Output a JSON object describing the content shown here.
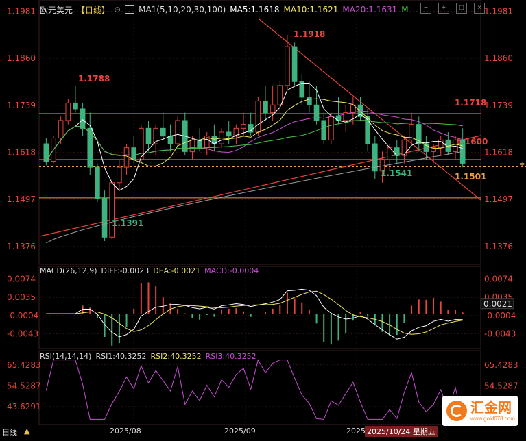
{
  "header": {
    "symbol": "欧元美元",
    "period": "【日线】",
    "ma_label": "MA1(5,10,20,30,100)",
    "ma5": "MA5:1.1618",
    "ma10": "MA10:1.1621",
    "ma20": "MA20:1.1631",
    "m_flag": "M"
  },
  "macd_header": {
    "title": "MACD(26,12,9)",
    "diff": "DIFF:-0.0023",
    "dea": "DEA:-0.0021",
    "macd": "MACD:-0.0004"
  },
  "rsi_header": {
    "title": "RSI(14,14,14)",
    "rsi1": "RSI1:40.3252",
    "rsi2": "RSI2:40.3252",
    "rsi3": "RSI3:40.3252"
  },
  "price_axis": [
    "1.1981",
    "1.1860",
    "1.1739",
    "1.1618",
    "1.1497",
    "1.1376"
  ],
  "macd_axis": [
    "0.0074",
    "0.0035",
    "-0.0004",
    "-0.0043"
  ],
  "macd_current": "0.0021",
  "rsi_axis": [
    "65.4283",
    "54.5287",
    "43.6291"
  ],
  "annotations": {
    "high": "1.1918",
    "peak_left": "1.1788",
    "low": "1.1391",
    "level_upper": "1.1718",
    "level_mid": "1.1600",
    "level_low": "1.1501",
    "swing_low": "1.1541"
  },
  "dates": {
    "aug": "2025/08",
    "sep": "2025/09",
    "oct_partial": "2025",
    "current": "2025/10/24 星期五"
  },
  "footer": {
    "left_label": "日线"
  },
  "logo": {
    "name": "汇金网",
    "url": "www.gold678.com"
  },
  "colors": {
    "up": "#e8453c",
    "down": "#3fb37f",
    "ma5": "#ffffff",
    "ma10": "#f2e85c",
    "ma20": "#c94fd6",
    "ma30": "#49c24a",
    "ma100": "#9a9a9a",
    "rsi": "#c94fd6"
  },
  "chart_data": {
    "type": "candlestick",
    "ylim": [
      1.133,
      1.201
    ],
    "candles": [
      [
        1.164,
        1.1655,
        1.1585,
        1.1595
      ],
      [
        1.1595,
        1.166,
        1.159,
        1.1655
      ],
      [
        1.1655,
        1.171,
        1.164,
        1.17
      ],
      [
        1.17,
        1.1755,
        1.169,
        1.1745
      ],
      [
        1.1745,
        1.179,
        1.172,
        1.173
      ],
      [
        1.173,
        1.1745,
        1.166,
        1.168
      ],
      [
        1.168,
        1.172,
        1.156,
        1.158
      ],
      [
        1.158,
        1.159,
        1.149,
        1.15
      ],
      [
        1.15,
        1.152,
        1.139,
        1.14
      ],
      [
        1.14,
        1.155,
        1.1395,
        1.154
      ],
      [
        1.154,
        1.16,
        1.152,
        1.158
      ],
      [
        1.158,
        1.164,
        1.156,
        1.163
      ],
      [
        1.163,
        1.166,
        1.159,
        1.16
      ],
      [
        1.16,
        1.169,
        1.159,
        1.168
      ],
      [
        1.168,
        1.17,
        1.162,
        1.164
      ],
      [
        1.164,
        1.169,
        1.161,
        1.168
      ],
      [
        1.168,
        1.172,
        1.165,
        1.166
      ],
      [
        1.166,
        1.169,
        1.162,
        1.164
      ],
      [
        1.164,
        1.171,
        1.163,
        1.17
      ],
      [
        1.17,
        1.172,
        1.161,
        1.162
      ],
      [
        1.162,
        1.166,
        1.16,
        1.165
      ],
      [
        1.165,
        1.168,
        1.162,
        1.163
      ],
      [
        1.163,
        1.167,
        1.161,
        1.166
      ],
      [
        1.166,
        1.169,
        1.162,
        1.164
      ],
      [
        1.164,
        1.168,
        1.163,
        1.167
      ],
      [
        1.167,
        1.17,
        1.164,
        1.166
      ],
      [
        1.166,
        1.169,
        1.164,
        1.168
      ],
      [
        1.168,
        1.172,
        1.166,
        1.169
      ],
      [
        1.169,
        1.172,
        1.166,
        1.167
      ],
      [
        1.167,
        1.176,
        1.166,
        1.175
      ],
      [
        1.175,
        1.179,
        1.17,
        1.172
      ],
      [
        1.172,
        1.179,
        1.17,
        1.174
      ],
      [
        1.174,
        1.18,
        1.172,
        1.179
      ],
      [
        1.179,
        1.192,
        1.178,
        1.189
      ],
      [
        1.189,
        1.19,
        1.179,
        1.18
      ],
      [
        1.18,
        1.182,
        1.174,
        1.176
      ],
      [
        1.176,
        1.18,
        1.172,
        1.174
      ],
      [
        1.174,
        1.179,
        1.169,
        1.17
      ],
      [
        1.17,
        1.172,
        1.164,
        1.165
      ],
      [
        1.165,
        1.172,
        1.164,
        1.171
      ],
      [
        1.171,
        1.176,
        1.169,
        1.17
      ],
      [
        1.17,
        1.174,
        1.167,
        1.172
      ],
      [
        1.172,
        1.176,
        1.169,
        1.174
      ],
      [
        1.174,
        1.176,
        1.17,
        1.171
      ],
      [
        1.171,
        1.173,
        1.162,
        1.164
      ],
      [
        1.164,
        1.166,
        1.155,
        1.157
      ],
      [
        1.157,
        1.162,
        1.154,
        1.16
      ],
      [
        1.16,
        1.164,
        1.157,
        1.163
      ],
      [
        1.163,
        1.165,
        1.159,
        1.161
      ],
      [
        1.161,
        1.166,
        1.159,
        1.165
      ],
      [
        1.165,
        1.172,
        1.164,
        1.169
      ],
      [
        1.169,
        1.171,
        1.162,
        1.164
      ],
      [
        1.164,
        1.166,
        1.16,
        1.162
      ],
      [
        1.162,
        1.164,
        1.159,
        1.163
      ],
      [
        1.163,
        1.166,
        1.161,
        1.165
      ],
      [
        1.165,
        1.167,
        1.161,
        1.162
      ],
      [
        1.162,
        1.166,
        1.16,
        1.165
      ],
      [
        1.165,
        1.168,
        1.158,
        1.159
      ]
    ],
    "support_lines": [
      1.1718,
      1.16,
      1.1501
    ],
    "dashed_level": 1.1581,
    "macd_ylim": [
      -0.007,
      0.0085
    ],
    "rsi_ylim": [
      35,
      70
    ]
  }
}
